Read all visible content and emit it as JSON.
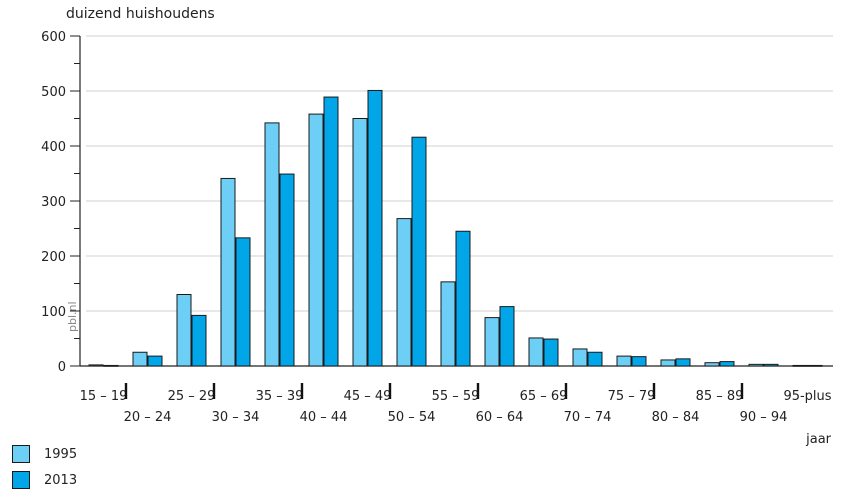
{
  "chart_data": {
    "type": "bar",
    "ylabel": "duizend huishoudens",
    "xlabel": "jaar",
    "watermark": "pbl.nl",
    "ylim": [
      0,
      600
    ],
    "yticks": [
      0,
      100,
      200,
      300,
      400,
      500,
      600
    ],
    "grid": true,
    "legend_position": "bottom-left",
    "categories": [
      "15 – 19",
      "20 – 24",
      "25 – 29",
      "30 – 34",
      "35 – 39",
      "40 – 44",
      "45 – 49",
      "50 – 54",
      "55 – 59",
      "60 – 64",
      "65 – 69",
      "70 – 74",
      "75 – 79",
      "80 – 84",
      "85 – 89",
      "90 – 94",
      "95-plus"
    ],
    "series": [
      {
        "name": "1995",
        "color": "#6ecff6",
        "values": [
          2,
          25,
          130,
          341,
          442,
          458,
          450,
          268,
          153,
          88,
          51,
          31,
          18,
          11,
          6,
          3,
          1
        ]
      },
      {
        "name": "2013",
        "color": "#00a6e8",
        "values": [
          1,
          18,
          92,
          233,
          349,
          489,
          501,
          416,
          245,
          108,
          49,
          25,
          17,
          13,
          8,
          3,
          1
        ]
      }
    ]
  }
}
